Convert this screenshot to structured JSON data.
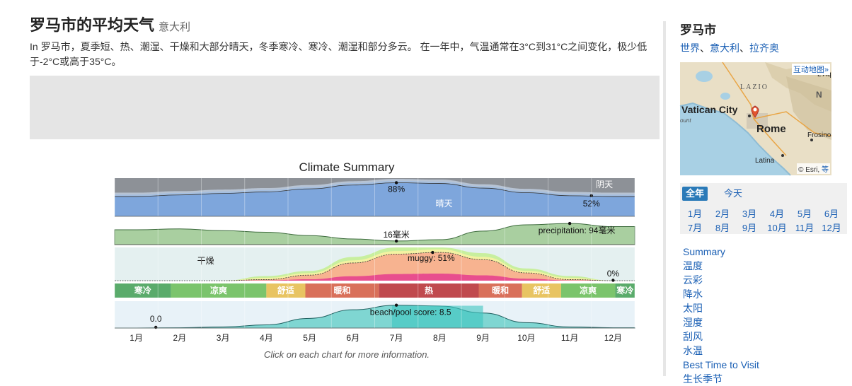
{
  "header": {
    "title": "罗马市的平均天气",
    "country": "意大利",
    "intro": "In 罗马市，夏季短、热、潮湿、干燥和大部分晴天，冬季寒冷、寒冷、潮湿和部分多云。 在一年中，气温通常在3°C到31°C之间变化，极少低于-2°C或高于35°C。"
  },
  "chart_data": {
    "type": "area",
    "title": "Climate Summary",
    "caption": "Click on each chart for more information.",
    "months": [
      "1月",
      "2月",
      "3月",
      "4月",
      "5月",
      "6月",
      "7月",
      "8月",
      "9月",
      "10月",
      "11月",
      "12月"
    ],
    "cloud": {
      "label_overcast": "阴天",
      "label_clear": "晴天",
      "clear_percent": [
        52,
        56,
        60,
        64,
        72,
        82,
        88,
        86,
        74,
        62,
        54,
        52
      ],
      "max_annotation": "88%",
      "min_annotation": "52%"
    },
    "precipitation": {
      "values_mm": [
        66,
        70,
        62,
        55,
        40,
        25,
        16,
        22,
        60,
        88,
        94,
        80
      ],
      "min_annotation": "16毫米",
      "max_annotation": "precipitation: 94毫米"
    },
    "humidity": {
      "label_dry": "干燥",
      "muggy_percent": [
        0,
        0,
        0,
        2,
        10,
        32,
        48,
        51,
        38,
        14,
        2,
        0
      ],
      "max_annotation": "muggy: 51%",
      "min_annotation": "0%"
    },
    "temperature_bands": [
      {
        "label": "寒冷",
        "start": 0.0,
        "end": 1.3,
        "color": "#5aab6b"
      },
      {
        "label": "凉爽",
        "start": 1.3,
        "end": 3.5,
        "color": "#7bc46c"
      },
      {
        "label": "舒适",
        "start": 3.5,
        "end": 4.4,
        "color": "#e8c462"
      },
      {
        "label": "暖和",
        "start": 4.4,
        "end": 6.1,
        "color": "#d9705a"
      },
      {
        "label": "热",
        "start": 6.1,
        "end": 8.4,
        "color": "#c04a4e"
      },
      {
        "label": "暖和",
        "start": 8.4,
        "end": 9.4,
        "color": "#d9705a"
      },
      {
        "label": "舒适",
        "start": 9.4,
        "end": 10.3,
        "color": "#e8c462"
      },
      {
        "label": "凉爽",
        "start": 10.3,
        "end": 11.55,
        "color": "#7bc46c"
      },
      {
        "label": "寒冷",
        "start": 11.55,
        "end": 12.0,
        "color": "#5aab6b"
      }
    ],
    "beach_score": {
      "values": [
        0.0,
        0.1,
        0.4,
        1.2,
        3.6,
        6.8,
        8.5,
        8.2,
        5.6,
        2.0,
        0.4,
        0.1
      ],
      "max_annotation": "beach/pool score: 8.5",
      "min_annotation": "0.0"
    }
  },
  "sidebar": {
    "title": "罗马市",
    "breadcrumb": [
      "世界",
      "意大利",
      "拉齐奥"
    ],
    "map": {
      "link_label": "互动地图»",
      "credit": "© Esri,",
      "credit_link": "等",
      "labels": {
        "region": "LAZIO",
        "vatican": "Vatican City",
        "rome": "Rome",
        "latina": "Latina",
        "frosinone": "Frosino",
        "laquila": "L'Aq",
        "n": "N",
        "coast": "ount"
      }
    },
    "period_tabs": {
      "all_year": "全年",
      "today": "今天"
    },
    "months": [
      "1月",
      "2月",
      "3月",
      "4月",
      "5月",
      "6月",
      "7月",
      "8月",
      "9月",
      "10月",
      "11月",
      "12月"
    ],
    "toc": [
      "Summary",
      "温度",
      "云彩",
      "降水",
      "太阳",
      "湿度",
      "刮风",
      "水温",
      "Best Time to Visit",
      "生长季节"
    ]
  }
}
